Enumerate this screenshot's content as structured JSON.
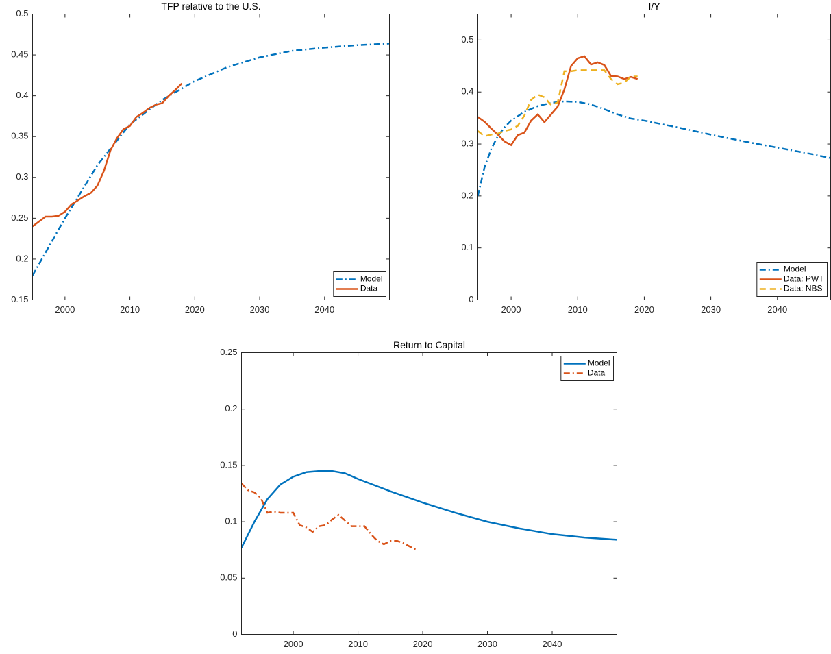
{
  "chart_data": [
    {
      "type": "line",
      "title": "TFP relative to the U.S.",
      "xlim": [
        1995,
        2050
      ],
      "xticks": [
        2000,
        2010,
        2020,
        2030,
        2040
      ],
      "ylim": [
        0.15,
        0.5
      ],
      "yticks": [
        0.15,
        0.2,
        0.25,
        0.3,
        0.35,
        0.4,
        0.45,
        0.5
      ],
      "legend": "lower right",
      "series": [
        {
          "name": "Model",
          "color": "#0072BD",
          "style": "dashdot",
          "x": [
            1995,
            2000,
            2005,
            2010,
            2015,
            2020,
            2025,
            2030,
            2035,
            2040,
            2045,
            2050
          ],
          "values": [
            0.18,
            0.25,
            0.315,
            0.365,
            0.395,
            0.418,
            0.435,
            0.447,
            0.455,
            0.459,
            0.462,
            0.464
          ]
        },
        {
          "name": "Data",
          "color": "#D95319",
          "style": "solid",
          "x": [
            1995,
            1996,
            1997,
            1998,
            1999,
            2000,
            2001,
            2002,
            2003,
            2004,
            2005,
            2006,
            2007,
            2008,
            2009,
            2010,
            2011,
            2012,
            2013,
            2014,
            2015,
            2016,
            2017,
            2018
          ],
          "values": [
            0.24,
            0.246,
            0.252,
            0.252,
            0.253,
            0.258,
            0.267,
            0.272,
            0.277,
            0.281,
            0.29,
            0.308,
            0.333,
            0.348,
            0.359,
            0.363,
            0.374,
            0.379,
            0.385,
            0.389,
            0.391,
            0.4,
            0.407,
            0.415
          ]
        }
      ]
    },
    {
      "type": "line",
      "title": "I/Y",
      "xlim": [
        1995,
        2048
      ],
      "xticks": [
        2000,
        2010,
        2020,
        2030,
        2040
      ],
      "ylim": [
        0,
        0.55
      ],
      "yticks": [
        0,
        0.1,
        0.2,
        0.3,
        0.4,
        0.5
      ],
      "legend": "lower right",
      "series": [
        {
          "name": "Model",
          "color": "#0072BD",
          "style": "dashdot",
          "x": [
            1995,
            1996,
            1997,
            1998,
            1999,
            2000,
            2002,
            2004,
            2006,
            2008,
            2010,
            2012,
            2014,
            2016,
            2018,
            2020,
            2025,
            2030,
            2035,
            2040,
            2045,
            2048
          ],
          "values": [
            0.2,
            0.255,
            0.29,
            0.315,
            0.332,
            0.345,
            0.362,
            0.373,
            0.379,
            0.382,
            0.381,
            0.376,
            0.367,
            0.357,
            0.349,
            0.345,
            0.332,
            0.318,
            0.305,
            0.293,
            0.281,
            0.273
          ]
        },
        {
          "name": "Data: PWT",
          "color": "#D95319",
          "style": "solid",
          "x": [
            1995,
            1996,
            1997,
            1998,
            1999,
            2000,
            2001,
            2002,
            2003,
            2004,
            2005,
            2006,
            2007,
            2008,
            2009,
            2010,
            2011,
            2012,
            2013,
            2014,
            2015,
            2016,
            2017,
            2018,
            2019
          ],
          "values": [
            0.352,
            0.343,
            0.33,
            0.318,
            0.305,
            0.298,
            0.317,
            0.322,
            0.345,
            0.357,
            0.342,
            0.357,
            0.372,
            0.405,
            0.45,
            0.465,
            0.469,
            0.453,
            0.457,
            0.452,
            0.431,
            0.43,
            0.425,
            0.429,
            0.425
          ]
        },
        {
          "name": "Data: NBS",
          "color": "#EDB120",
          "style": "dashed",
          "x": [
            1995,
            1996,
            1997,
            1998,
            1999,
            2000,
            2001,
            2002,
            2003,
            2004,
            2005,
            2006,
            2007,
            2008,
            2009,
            2010,
            2011,
            2012,
            2013,
            2014,
            2015,
            2016,
            2017,
            2018,
            2019
          ],
          "values": [
            0.325,
            0.315,
            0.318,
            0.32,
            0.325,
            0.328,
            0.335,
            0.355,
            0.385,
            0.395,
            0.39,
            0.375,
            0.38,
            0.44,
            0.44,
            0.442,
            0.442,
            0.442,
            0.442,
            0.442,
            0.425,
            0.415,
            0.418,
            0.43,
            0.43
          ]
        }
      ]
    },
    {
      "type": "line",
      "title": "Return to Capital",
      "xlim": [
        1992,
        2050
      ],
      "xticks": [
        2000,
        2010,
        2020,
        2030,
        2040
      ],
      "ylim": [
        0,
        0.25
      ],
      "yticks": [
        0,
        0.05,
        0.1,
        0.15,
        0.2,
        0.25
      ],
      "legend": "upper right",
      "series": [
        {
          "name": "Model",
          "color": "#0072BD",
          "style": "solid",
          "x": [
            1992,
            1994,
            1996,
            1998,
            2000,
            2002,
            2004,
            2006,
            2008,
            2010,
            2015,
            2020,
            2025,
            2030,
            2035,
            2040,
            2045,
            2050
          ],
          "values": [
            0.077,
            0.1,
            0.12,
            0.133,
            0.14,
            0.144,
            0.145,
            0.145,
            0.143,
            0.138,
            0.127,
            0.117,
            0.108,
            0.1,
            0.094,
            0.089,
            0.086,
            0.084
          ]
        },
        {
          "name": "Data",
          "color": "#D95319",
          "style": "dashdot",
          "x": [
            1992,
            1993,
            1994,
            1995,
            1996,
            1997,
            1998,
            1999,
            2000,
            2001,
            2002,
            2003,
            2004,
            2005,
            2006,
            2007,
            2008,
            2009,
            2010,
            2011,
            2012,
            2013,
            2014,
            2015,
            2016,
            2017,
            2018,
            2019
          ],
          "values": [
            0.134,
            0.128,
            0.126,
            0.121,
            0.108,
            0.109,
            0.108,
            0.108,
            0.108,
            0.097,
            0.095,
            0.091,
            0.096,
            0.097,
            0.102,
            0.106,
            0.101,
            0.096,
            0.096,
            0.096,
            0.089,
            0.083,
            0.08,
            0.083,
            0.083,
            0.081,
            0.078,
            0.075
          ]
        }
      ]
    }
  ]
}
